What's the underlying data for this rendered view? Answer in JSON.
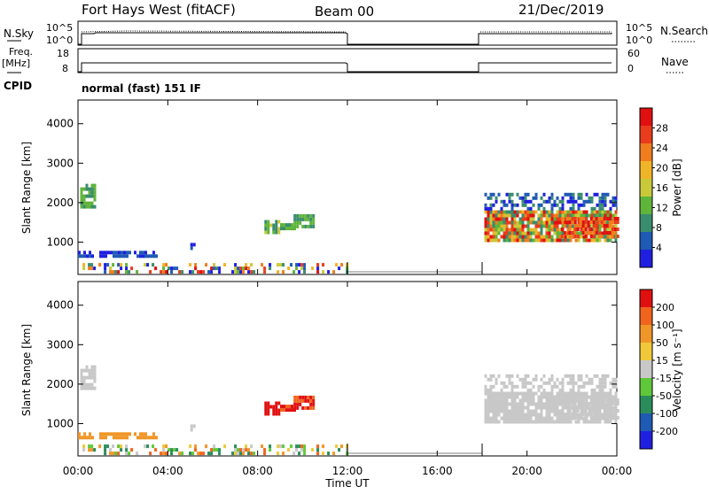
{
  "header": {
    "station": "Fort Hays West (fitACF)",
    "beam": "Beam 00",
    "date": "21/Dec/2019"
  },
  "top_panels": {
    "nsky_label": "N.Sky",
    "nsky_ticks": [
      "10^5",
      "10^0"
    ],
    "nsearch_label": "N.Search",
    "nsearch_ticks": [
      "10^5",
      "10^0"
    ],
    "freq_label": "Freq.",
    "freq_unit": "[MHz]",
    "freq_ticks": [
      "18",
      "8"
    ],
    "nave_label": "Nave",
    "nave_ticks": [
      "60",
      "0"
    ],
    "cpid_label": "CPID",
    "cpid_text": "normal (fast) 151 IF"
  },
  "colors": {
    "power": [
      "#1f1fe0",
      "#1f5ab4",
      "#3a8c6e",
      "#5fb43a",
      "#c9c93a",
      "#f0b428",
      "#f07d1e",
      "#e83c1c",
      "#e01010"
    ],
    "velocity": [
      "#1f1fe0",
      "#1f5ab4",
      "#2a8c5a",
      "#5fc83a",
      "#c8c8c8",
      "#f0c83a",
      "#f09628",
      "#f0641e",
      "#e01010"
    ]
  },
  "chart_data": [
    {
      "type": "heatmap",
      "name": "power",
      "ylabel": "Slant Range [km]",
      "yticks": [
        1000,
        2000,
        3000,
        4000
      ],
      "ylim": [
        180,
        4600
      ],
      "xticks": [
        "00:00",
        "04:00",
        "08:00",
        "12:00",
        "16:00",
        "20:00",
        "00:00"
      ],
      "xlim_hours": [
        0,
        24
      ],
      "colorbar_label": "Power [dB]",
      "colorbar_ticks": [
        "4",
        "8",
        "12",
        "16",
        "20",
        "24",
        "28"
      ],
      "data_gap_hours": [
        12,
        18
      ]
    },
    {
      "type": "heatmap",
      "name": "velocity",
      "ylabel": "Slant Range [km]",
      "yticks": [
        1000,
        2000,
        3000,
        4000
      ],
      "ylim": [
        180,
        4600
      ],
      "xticks": [
        "00:00",
        "04:00",
        "08:00",
        "12:00",
        "16:00",
        "20:00",
        "00:00"
      ],
      "xlabel": "Time UT",
      "colorbar_label": "Velocity [m s⁻¹]",
      "colorbar_ticks": [
        "-200",
        "-100",
        "-50",
        "-15",
        "15",
        "50",
        "100",
        "200"
      ],
      "data_gap_hours": [
        12,
        18
      ]
    }
  ]
}
